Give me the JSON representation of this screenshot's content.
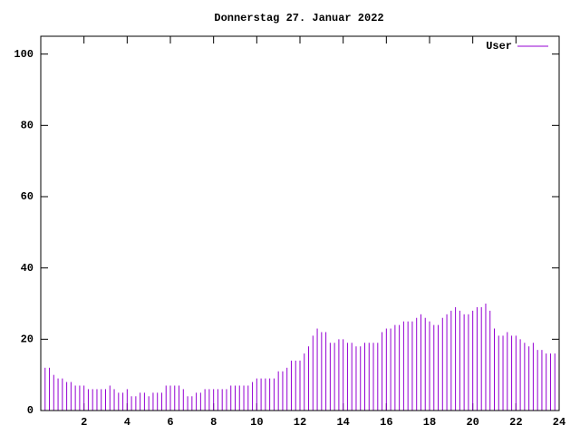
{
  "chart_data": {
    "type": "impulse",
    "title": "Donnerstag 27. Januar 2022",
    "x": [
      0,
      0.2,
      0.4,
      0.6,
      0.8,
      1,
      1.2,
      1.4,
      1.6,
      1.8,
      2,
      2.2,
      2.4,
      2.6,
      2.8,
      3,
      3.2,
      3.4,
      3.6,
      3.8,
      4,
      4.2,
      4.4,
      4.6,
      4.8,
      5,
      5.2,
      5.4,
      5.6,
      5.8,
      6,
      6.2,
      6.4,
      6.6,
      6.8,
      7,
      7.2,
      7.4,
      7.6,
      7.8,
      8,
      8.2,
      8.4,
      8.6,
      8.8,
      9,
      9.2,
      9.4,
      9.6,
      9.8,
      10,
      10.2,
      10.4,
      10.6,
      10.8,
      11,
      11.2,
      11.4,
      11.6,
      11.8,
      12,
      12.2,
      12.4,
      12.6,
      12.8,
      13,
      13.2,
      13.4,
      13.6,
      13.8,
      14,
      14.2,
      14.4,
      14.6,
      14.8,
      15,
      15.2,
      15.4,
      15.6,
      15.8,
      16,
      16.2,
      16.4,
      16.6,
      16.8,
      17,
      17.2,
      17.4,
      17.6,
      17.8,
      18,
      18.2,
      18.4,
      18.6,
      18.8,
      19,
      19.2,
      19.4,
      19.6,
      19.8,
      20,
      20.2,
      20.4,
      20.6,
      20.8,
      21,
      21.2,
      21.4,
      21.6,
      21.8,
      22,
      22.2,
      22.4,
      22.6,
      22.8,
      23,
      23.2,
      23.4,
      23.6,
      23.8,
      24
    ],
    "series": [
      {
        "name": "User",
        "color": "#9400d3",
        "values": [
          12,
          12,
          12,
          10,
          9,
          9,
          8,
          8,
          7,
          7,
          7,
          6,
          6,
          6,
          6,
          6,
          7,
          6,
          5,
          5,
          6,
          4,
          4,
          5,
          5,
          4,
          5,
          5,
          5,
          7,
          7,
          7,
          7,
          6,
          4,
          4,
          5,
          5,
          6,
          6,
          6,
          6,
          6,
          6,
          7,
          7,
          7,
          7,
          7,
          8,
          9,
          9,
          9,
          9,
          9,
          11,
          11,
          12,
          14,
          14,
          14,
          16,
          18,
          21,
          23,
          22,
          22,
          19,
          19,
          20,
          20,
          19,
          19,
          18,
          18,
          19,
          19,
          19,
          19,
          22,
          23,
          23,
          24,
          24,
          25,
          25,
          25,
          26,
          27,
          26,
          25,
          24,
          24,
          26,
          27,
          28,
          29,
          28,
          27,
          27,
          28,
          29,
          29,
          30,
          28,
          23,
          21,
          21,
          22,
          21,
          21,
          20,
          19,
          18,
          19,
          17,
          17,
          16,
          16,
          16,
          15
        ]
      }
    ],
    "xlim": [
      0,
      24
    ],
    "ylim": [
      0,
      105
    ],
    "xticks": [
      2,
      4,
      6,
      8,
      10,
      12,
      14,
      16,
      18,
      20,
      22,
      24
    ],
    "yticks": [
      0,
      20,
      40,
      60,
      80,
      100
    ],
    "legend": "top right"
  }
}
